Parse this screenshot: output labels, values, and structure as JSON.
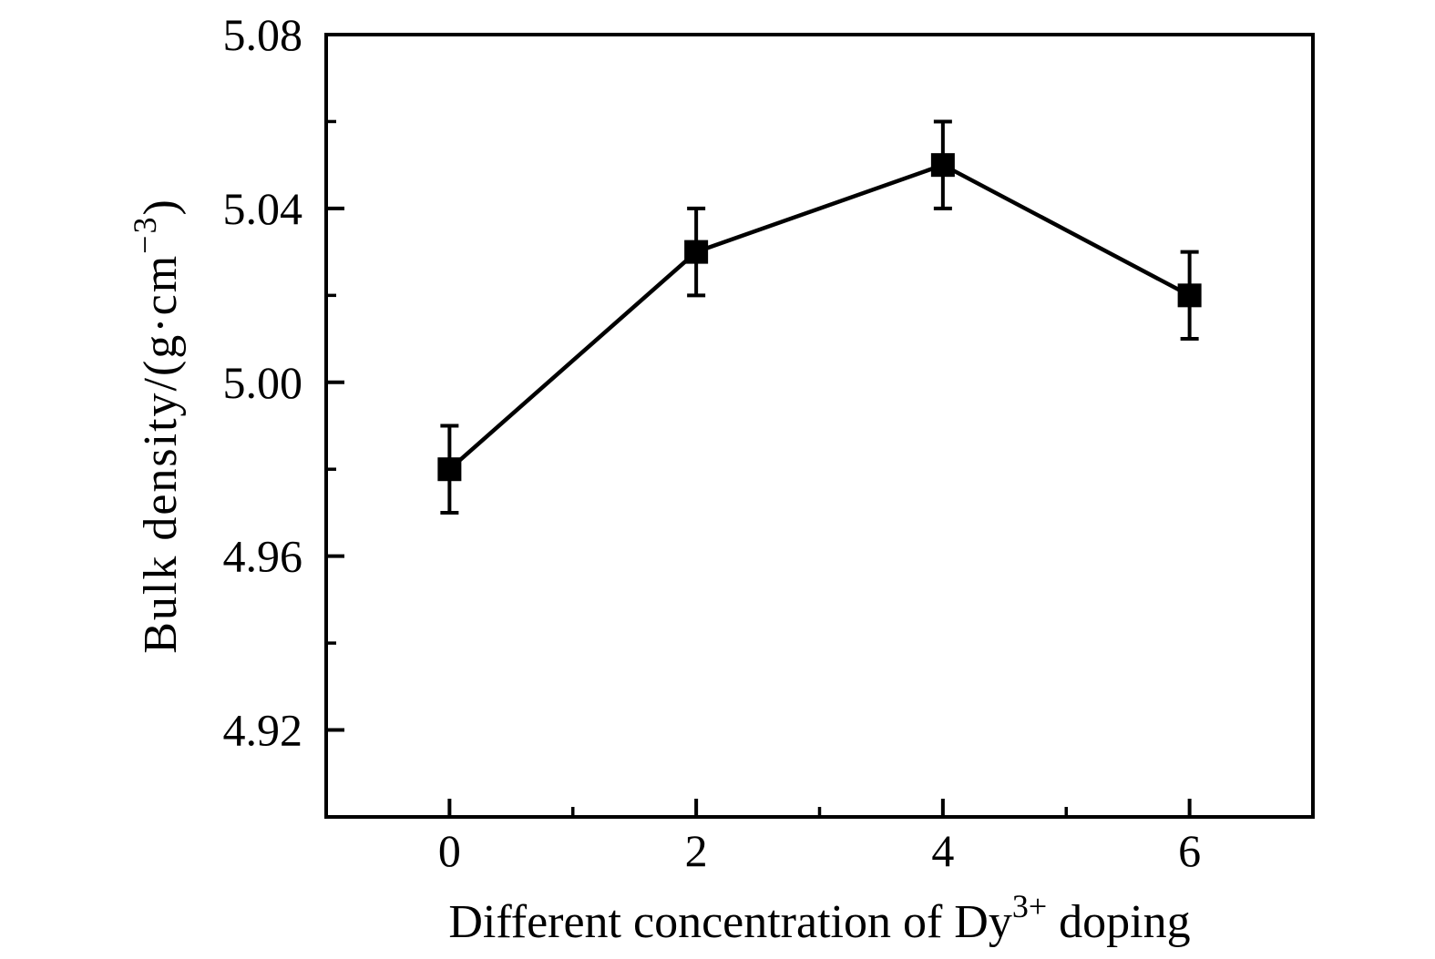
{
  "chart_data": {
    "type": "line",
    "title": "",
    "xlabel": "Different concentration of Dy³⁺ doping",
    "xlabel_parts": [
      {
        "text": "Different concentration of Dy",
        "sup": false
      },
      {
        "text": "3+",
        "sup": true
      },
      {
        "text": " doping",
        "sup": false
      }
    ],
    "ylabel": "Bulk density/(g·cm⁻³)",
    "ylabel_parts": [
      {
        "text": "Bulk density/(g·cm",
        "sup": false
      },
      {
        "text": "−3",
        "sup": true
      },
      {
        "text": ")",
        "sup": false
      }
    ],
    "x": [
      0,
      2,
      4,
      6
    ],
    "series": [
      {
        "name": "bulk-density",
        "values": [
          4.98,
          5.03,
          5.05,
          5.02
        ],
        "y_error": [
          0.01,
          0.01,
          0.01,
          0.01
        ],
        "marker": "filled-square",
        "color": "#000000"
      }
    ],
    "xlim": [
      -1,
      7
    ],
    "ylim": [
      4.9,
      5.08
    ],
    "xticks": {
      "values": [
        0,
        2,
        4,
        6
      ],
      "labels": [
        "0",
        "2",
        "4",
        "6"
      ],
      "minor": [
        1,
        3,
        5
      ]
    },
    "yticks": {
      "values": [
        4.92,
        4.96,
        5.0,
        5.04,
        5.08
      ],
      "labels": [
        "4.92",
        "4.96",
        "5.00",
        "5.04",
        "5.08"
      ],
      "minor": [
        4.94,
        4.98,
        5.02,
        5.06
      ]
    },
    "grid": false,
    "legend": "none",
    "background_color": "#ffffff",
    "axis_color": "#000000",
    "tick_direction": "in"
  }
}
